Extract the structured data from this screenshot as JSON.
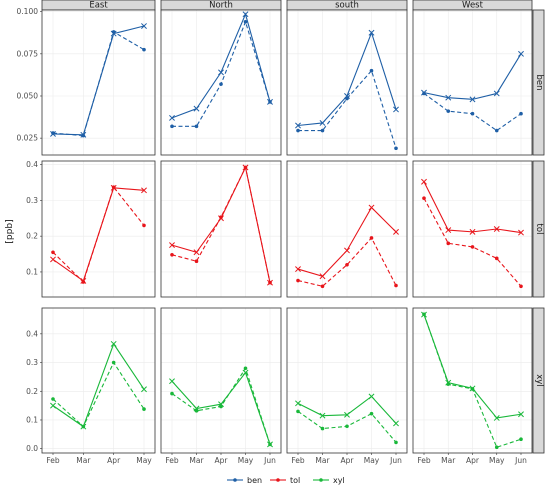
{
  "chart_data": {
    "type": "line",
    "ylabel": "[ppb]",
    "colors": {
      "ben": "#1f5fa6",
      "tol": "#e8151b",
      "xyl": "#19b83a"
    },
    "columns": [
      "East",
      "North",
      "south",
      "West"
    ],
    "rows": [
      {
        "name": "ben",
        "yticks": [
          "0.025",
          "0.050",
          "0.075",
          "0.100"
        ],
        "ylim": [
          0.015,
          0.101
        ]
      },
      {
        "name": "tol",
        "yticks": [
          "0.1",
          "0.2",
          "0.3",
          "0.4"
        ],
        "ylim": [
          0.03,
          0.41
        ]
      },
      {
        "name": "xyl",
        "yticks": [
          "0.0",
          "0.1",
          "0.2",
          "0.3",
          "0.4"
        ],
        "ylim": [
          -0.015,
          0.49
        ]
      }
    ],
    "series_styles": [
      {
        "label": "solid line with x markers"
      },
      {
        "label": "dashed line with dot markers"
      }
    ],
    "panels": [
      {
        "row": "ben",
        "col": "East",
        "x": [
          "Feb",
          "Mar",
          "Apr",
          "May"
        ],
        "solid": [
          0.0275,
          0.027,
          0.087,
          0.0915
        ],
        "dashed": [
          0.028,
          0.0265,
          0.088,
          0.0775
        ]
      },
      {
        "row": "ben",
        "col": "North",
        "x": [
          "Feb",
          "Mar",
          "Apr",
          "May",
          "Jun"
        ],
        "solid": [
          0.037,
          0.0425,
          0.064,
          0.0985,
          0.0465
        ],
        "dashed": [
          0.032,
          0.032,
          0.057,
          0.094,
          0.0465
        ]
      },
      {
        "row": "ben",
        "col": "south",
        "x": [
          "Feb",
          "Mar",
          "Apr",
          "May",
          "Jun"
        ],
        "solid": [
          0.0325,
          0.034,
          0.05,
          0.0875,
          0.042
        ],
        "dashed": [
          0.0295,
          0.0295,
          0.0485,
          0.065,
          0.019
        ]
      },
      {
        "row": "ben",
        "col": "West",
        "x": [
          "Feb",
          "Mar",
          "Apr",
          "May",
          "Jun"
        ],
        "solid": [
          0.052,
          0.049,
          0.048,
          0.0515,
          0.075
        ],
        "dashed": [
          0.0515,
          0.041,
          0.0395,
          0.0295,
          0.0395
        ]
      },
      {
        "row": "tol",
        "col": "East",
        "x": [
          "Feb",
          "Mar",
          "Apr",
          "May"
        ],
        "solid": [
          0.135,
          0.075,
          0.335,
          0.328
        ],
        "dashed": [
          0.155,
          0.072,
          0.337,
          0.23
        ]
      },
      {
        "row": "tol",
        "col": "North",
        "x": [
          "Feb",
          "Mar",
          "Apr",
          "May",
          "Jun"
        ],
        "solid": [
          0.175,
          0.155,
          0.25,
          0.392,
          0.07
        ],
        "dashed": [
          0.148,
          0.13,
          0.253,
          0.392,
          0.07
        ]
      },
      {
        "row": "tol",
        "col": "south",
        "x": [
          "Feb",
          "Mar",
          "Apr",
          "May",
          "Jun"
        ],
        "solid": [
          0.108,
          0.088,
          0.16,
          0.28,
          0.212
        ],
        "dashed": [
          0.076,
          0.06,
          0.12,
          0.195,
          0.062
        ]
      },
      {
        "row": "tol",
        "col": "West",
        "x": [
          "Feb",
          "Mar",
          "Apr",
          "May",
          "Jun"
        ],
        "solid": [
          0.352,
          0.217,
          0.212,
          0.22,
          0.21
        ],
        "dashed": [
          0.306,
          0.18,
          0.17,
          0.138,
          0.06
        ]
      },
      {
        "row": "xyl",
        "col": "East",
        "x": [
          "Feb",
          "Mar",
          "Apr",
          "May"
        ],
        "solid": [
          0.15,
          0.077,
          0.365,
          0.207
        ],
        "dashed": [
          0.173,
          0.077,
          0.3,
          0.138
        ]
      },
      {
        "row": "xyl",
        "col": "North",
        "x": [
          "Feb",
          "Mar",
          "Apr",
          "May",
          "Jun"
        ],
        "solid": [
          0.235,
          0.14,
          0.155,
          0.265,
          0.015
        ],
        "dashed": [
          0.192,
          0.132,
          0.147,
          0.28,
          0.015
        ]
      },
      {
        "row": "xyl",
        "col": "south",
        "x": [
          "Feb",
          "Mar",
          "Apr",
          "May",
          "Jun"
        ],
        "solid": [
          0.158,
          0.115,
          0.118,
          0.182,
          0.088
        ],
        "dashed": [
          0.13,
          0.07,
          0.078,
          0.122,
          0.022
        ]
      },
      {
        "row": "xyl",
        "col": "West",
        "x": [
          "Feb",
          "Mar",
          "Apr",
          "May",
          "Jun"
        ],
        "solid": [
          0.467,
          0.23,
          0.21,
          0.107,
          0.12
        ],
        "dashed": [
          0.468,
          0.225,
          0.208,
          0.005,
          0.033
        ]
      }
    ],
    "legend": {
      "position": "bottom",
      "entries": [
        "ben",
        "tol",
        "xyl"
      ]
    },
    "grid": true
  }
}
